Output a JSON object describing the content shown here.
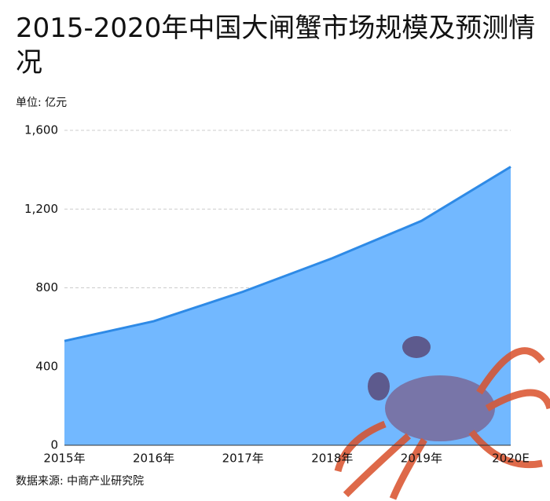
{
  "chart_data": {
    "type": "area",
    "title": "2015-2020年中国大闸蟹市场规模及预测情况",
    "subtitle": "单位: 亿元",
    "source": "数据来源: 中商产业研究院",
    "categories": [
      "2015年",
      "2016年",
      "2017年",
      "2018年",
      "2019年",
      "2020E"
    ],
    "values": [
      530,
      630,
      780,
      950,
      1140,
      1415
    ],
    "color": "#2e8ae6",
    "fill": "#72b8ff",
    "ylim": [
      0,
      1600
    ],
    "yticks": [
      0,
      400,
      800,
      {
        "value": 1200,
        "label": "1,200"
      },
      {
        "value": 1600,
        "label": "1,600"
      }
    ],
    "grid": true
  }
}
